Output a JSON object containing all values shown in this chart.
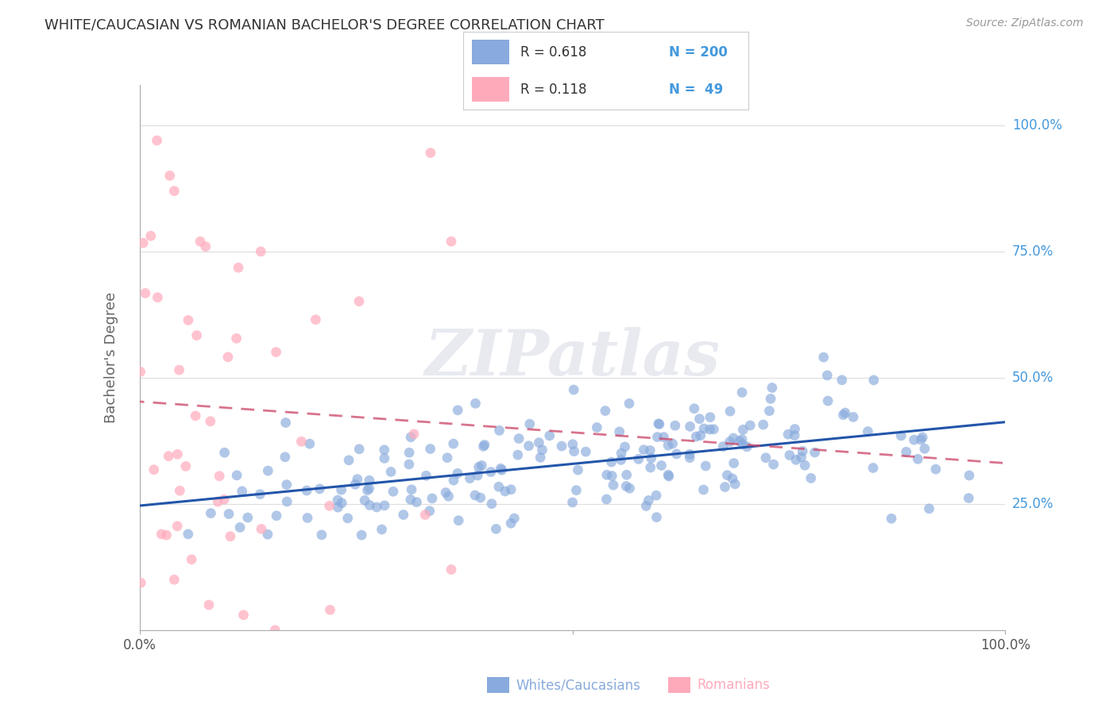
{
  "title": "WHITE/CAUCASIAN VS ROMANIAN BACHELOR'S DEGREE CORRELATION CHART",
  "source": "Source: ZipAtlas.com",
  "ylabel": "Bachelor's Degree",
  "legend_blue_R": "0.618",
  "legend_blue_N": "200",
  "legend_pink_R": "0.118",
  "legend_pink_N": "49",
  "blue_scatter_color": "#88aadd",
  "pink_scatter_color": "#ffaabb",
  "blue_line_color": "#2255aa",
  "pink_line_color": "#cc4466",
  "watermark": "ZIPatlas",
  "watermark_color": "#e8eaf0",
  "title_color": "#333333",
  "source_color": "#999999",
  "ylabel_color": "#666666",
  "right_tick_color": "#4499dd",
  "grid_color": "#dddddd",
  "axis_color": "#aaaaaa",
  "ytick_vals": [
    0.0,
    0.25,
    0.5,
    0.75,
    1.0
  ],
  "ytick_labels": [
    "",
    "25.0%",
    "50.0%",
    "75.0%",
    "100.0%"
  ],
  "xtick_vals": [
    0.0,
    0.5,
    1.0
  ],
  "xtick_labels": [
    "0.0%",
    "",
    "100.0%"
  ],
  "bottom_label_blue": "Whites/Caucasians",
  "bottom_label_pink": "Romanians",
  "blue_R": 0.618,
  "blue_N": 200,
  "pink_R": 0.118,
  "pink_N": 49
}
